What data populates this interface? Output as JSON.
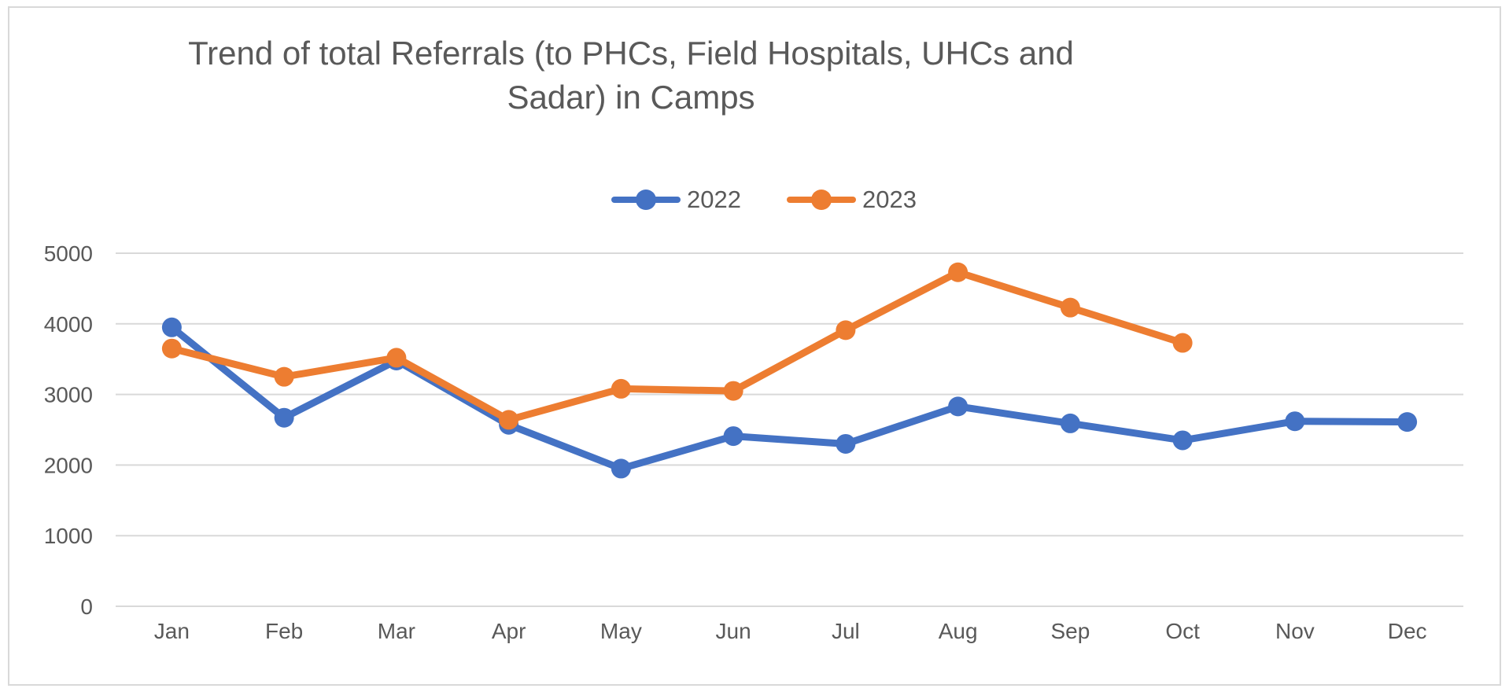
{
  "chart_data": {
    "type": "line",
    "title": "Trend of total Referrals (to PHCs, Field Hospitals, UHCs and Sadar) in Camps",
    "title_lines": [
      "Trend of total Referrals (to PHCs, Field Hospitals, UHCs and",
      "Sadar) in Camps"
    ],
    "categories": [
      "Jan",
      "Feb",
      "Mar",
      "Apr",
      "May",
      "Jun",
      "Jul",
      "Aug",
      "Sep",
      "Oct",
      "Nov",
      "Dec"
    ],
    "series": [
      {
        "name": "2022",
        "color": "#4472C4",
        "values": [
          3950,
          2670,
          3480,
          2570,
          1950,
          2410,
          2300,
          2830,
          2590,
          2350,
          2620,
          2610
        ]
      },
      {
        "name": "2023",
        "color": "#ED7D31",
        "values": [
          3650,
          3250,
          3520,
          2640,
          3080,
          3050,
          3910,
          4730,
          4230,
          3730,
          null,
          null
        ]
      }
    ],
    "xlabel": "",
    "ylabel": "",
    "ylim": [
      0,
      5000
    ],
    "yticks": [
      0,
      1000,
      2000,
      3000,
      4000,
      5000
    ],
    "grid": true,
    "legend_position": "top",
    "marker": "circle",
    "colors": {
      "grid_line": "#d9d9d9",
      "axis_text": "#595959",
      "title_text": "#595959",
      "frame_border": "#d9d9d9",
      "background": "#ffffff"
    }
  }
}
